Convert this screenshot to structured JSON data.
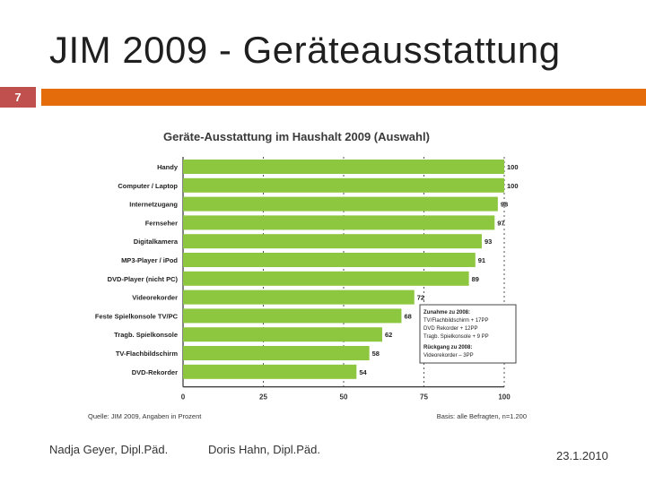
{
  "slide": {
    "title": "JIM 2009 - Geräteausstattung",
    "slide_number": "7",
    "accent_color": "#e46c0a",
    "number_box_color": "#c0504d"
  },
  "footer": {
    "author1": "Nadja Geyer, Dipl.Päd.",
    "author2": "Doris Hahn, Dipl.Päd.",
    "date": "23.1.2010"
  },
  "chart_data": {
    "type": "bar",
    "orientation": "horizontal",
    "title": "Geräte-Ausstattung im Haushalt 2009 (Auswahl)",
    "categories": [
      "Handy",
      "Computer / Laptop",
      "Internetzugang",
      "Fernseher",
      "Digitalkamera",
      "MP3-Player / iPod",
      "DVD-Player (nicht PC)",
      "Videorekorder",
      "Feste Spielkonsole TV/PC",
      "Tragb. Spielkonsole",
      "TV-Flachbildschirm",
      "DVD-Rekorder"
    ],
    "values": [
      100,
      100,
      98,
      97,
      93,
      91,
      89,
      72,
      68,
      62,
      58,
      54
    ],
    "xlim": [
      0,
      100
    ],
    "xticks": [
      0,
      25,
      50,
      75,
      100
    ],
    "bar_color": "#8dc63f",
    "source": "Quelle: JIM 2009, Angaben in Prozent",
    "basis": "Basis: alle Befragten, n=1.200",
    "annotation_lines": [
      "Zunahme zu 2008:",
      "TV/Flachbildschirm + 17PP",
      "DVD Rekorder + 12PP",
      "Tragb. Spielkonsole + 9 PP",
      "Rückgang zu 2008:",
      "Videorekorder – 3PP"
    ]
  }
}
